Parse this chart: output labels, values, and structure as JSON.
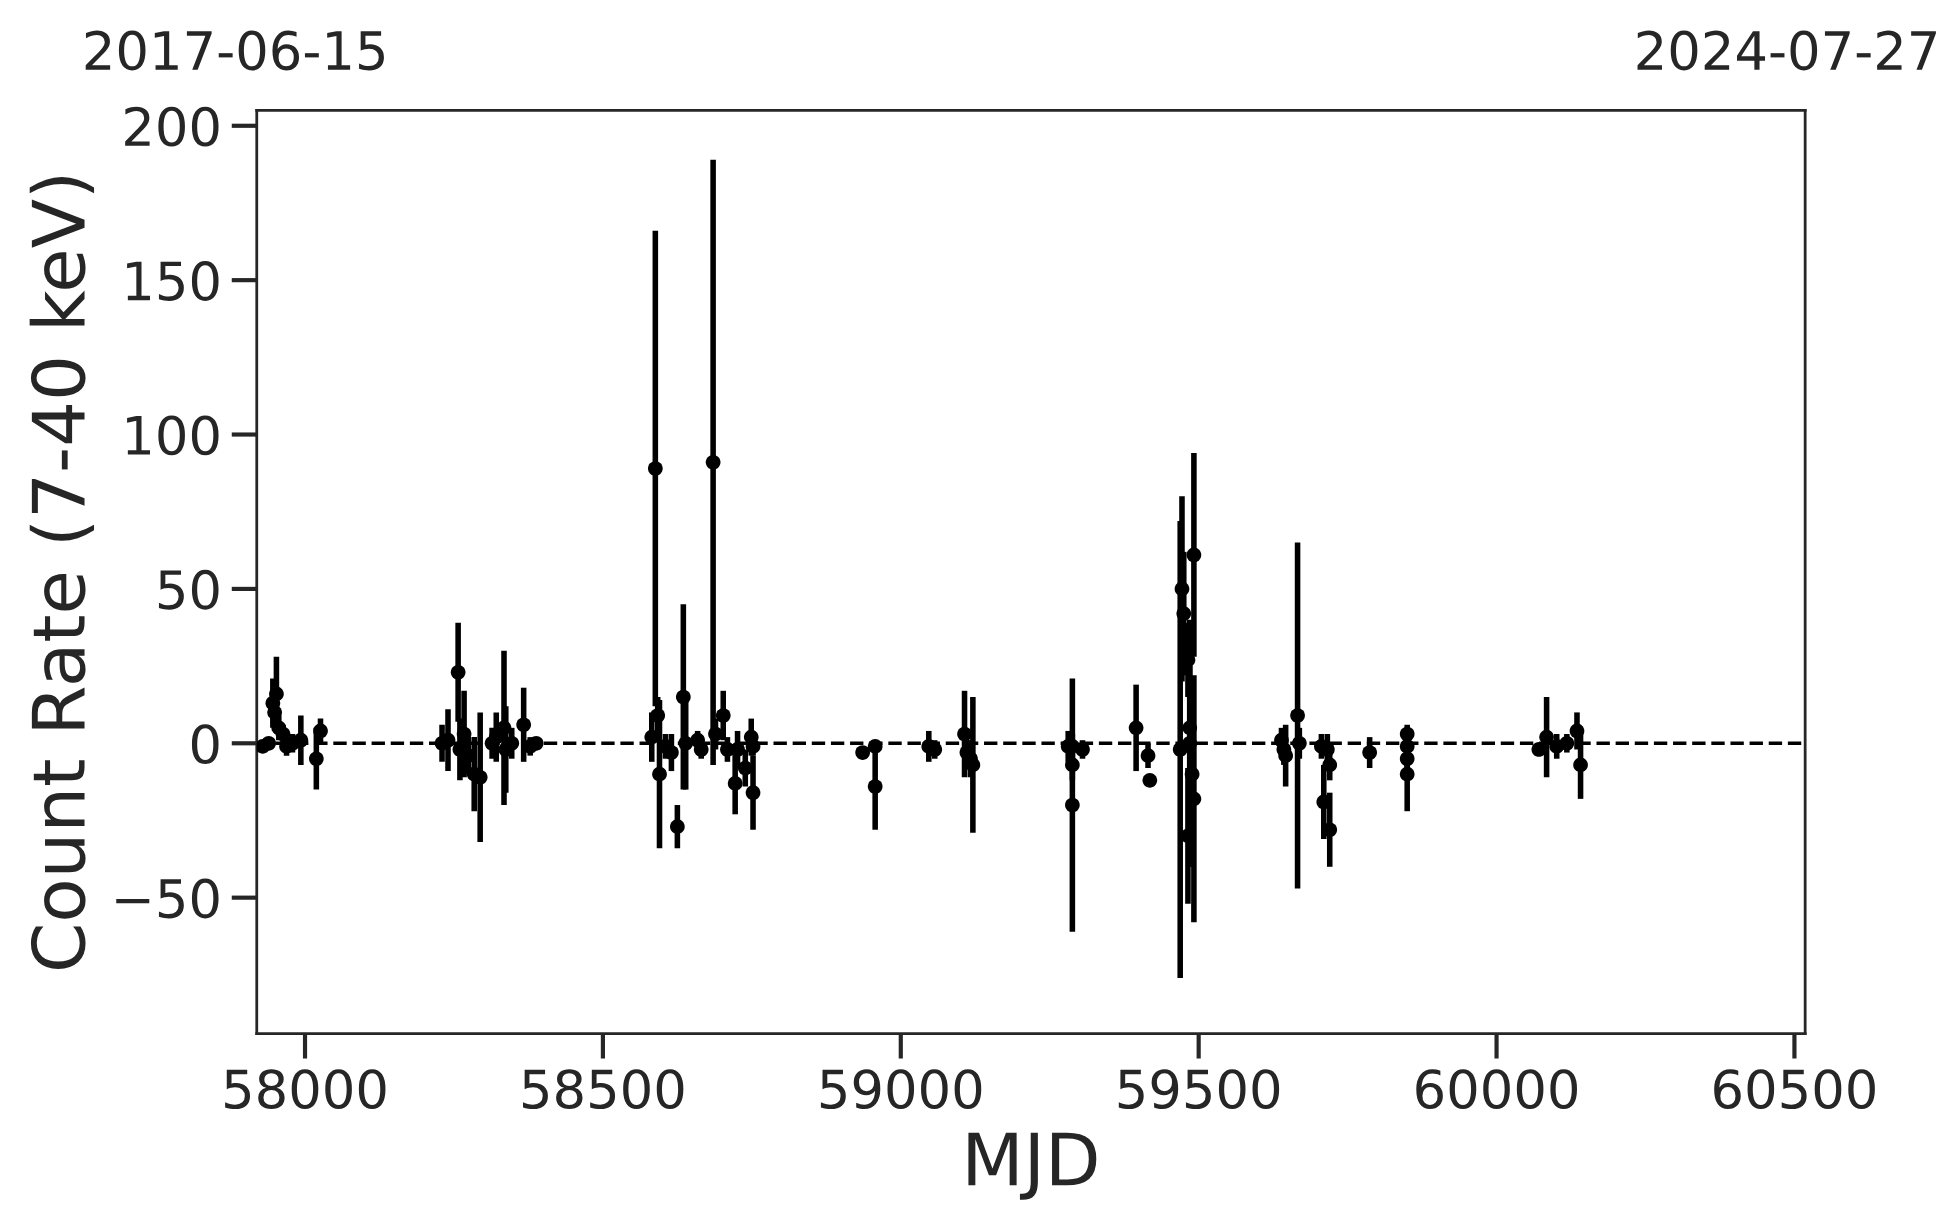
{
  "chart_data": {
    "type": "scatter",
    "xlabel": "MJD",
    "ylabel": "Count Rate (7-40 keV)",
    "xlim": [
      57919,
      60518
    ],
    "xticks": [
      58000,
      58500,
      59000,
      59500,
      60000,
      60500
    ],
    "annotations": [
      "2017-06-15",
      "2024-07-27"
    ],
    "ylim": [
      -94,
      205
    ],
    "yticks": [
      {
        "value": -50,
        "label": "−50"
      },
      0,
      50,
      100,
      150,
      200
    ],
    "grid": false,
    "legend": false,
    "marker": "circle",
    "ref_lines": [
      {
        "axis": "y",
        "value": 0,
        "color": "#000000",
        "line_style": "dashed"
      }
    ],
    "series": [
      {
        "color": "#000000",
        "x": [
          57929,
          57939,
          57946,
          57949,
          57952,
          57956,
          57963,
          57969,
          57979,
          57993,
          58019,
          58026,
          58230,
          58240,
          58257,
          58260,
          58267,
          58274,
          58284,
          58294,
          58314,
          58321,
          58334,
          58337,
          58347,
          58367,
          58378,
          58388,
          58582,
          58588,
          58592,
          58595,
          58605,
          58615,
          58625,
          58635,
          58639,
          58659,
          58665,
          58685,
          58689,
          58702,
          58709,
          58722,
          58726,
          58739,
          58749,
          58752,
          58752,
          58936,
          58957,
          58957,
          59047,
          59057,
          59107,
          59111,
          59117,
          59121,
          59281,
          59288,
          59288,
          59288,
          59305,
          59395,
          59415,
          59418,
          59472,
          59475,
          59482,
          59485,
          59485,
          59489,
          59482,
          59492,
          59492,
          59469,
          59639,
          59643,
          59646,
          59666,
          59669,
          59706,
          59710,
          59716,
          59720,
          59720,
          59787,
          59850,
          59850,
          59850,
          59850,
          60071,
          60084,
          60101,
          60118,
          60135,
          60141
        ],
        "values": [
          -1,
          0,
          13,
          10,
          16,
          5,
          3,
          -1,
          0,
          1,
          -5,
          4,
          0,
          1,
          23,
          -2,
          3,
          -4,
          -10,
          -11,
          0,
          2,
          5,
          -2,
          0,
          6,
          -1,
          0,
          2,
          89,
          9,
          -10,
          -1,
          -3,
          -27,
          15,
          0,
          1,
          -2,
          91,
          3,
          9,
          -2,
          -13,
          -2,
          -8,
          2,
          -16,
          -1,
          -3,
          -1,
          -14,
          -1,
          -2,
          3,
          -3,
          -5,
          -7,
          -1,
          -1,
          -20,
          -7,
          -2,
          5,
          -4,
          -12,
          50,
          42,
          27,
          5,
          0,
          -10,
          -30,
          -18,
          61,
          -2,
          1,
          -2,
          -4,
          9,
          0,
          -1,
          -19,
          -2,
          -28,
          -7,
          -3,
          -1,
          3,
          -5,
          -10,
          -2,
          2,
          -1,
          0,
          4,
          -7
        ],
        "errors": [
          1,
          2,
          8,
          6,
          12,
          4,
          3,
          3,
          3,
          8,
          10,
          4,
          6,
          10,
          16,
          10,
          14,
          6,
          12,
          21,
          5,
          8,
          25,
          14,
          5,
          12,
          3,
          2,
          8,
          77,
          6,
          24,
          4,
          6,
          7,
          30,
          15,
          3,
          3,
          98,
          5,
          8,
          4,
          10,
          6,
          6,
          6,
          12,
          3,
          2,
          2,
          14,
          5,
          3,
          14,
          4,
          6,
          22,
          5,
          4,
          41,
          5,
          3,
          14,
          4,
          2,
          30,
          20,
          12,
          20,
          40,
          30,
          22,
          40,
          33,
          74,
          4,
          5,
          10,
          56,
          5,
          4,
          12,
          5,
          12,
          5,
          5,
          4,
          3,
          5,
          12,
          1,
          13,
          4,
          3,
          6,
          11
        ]
      }
    ]
  }
}
